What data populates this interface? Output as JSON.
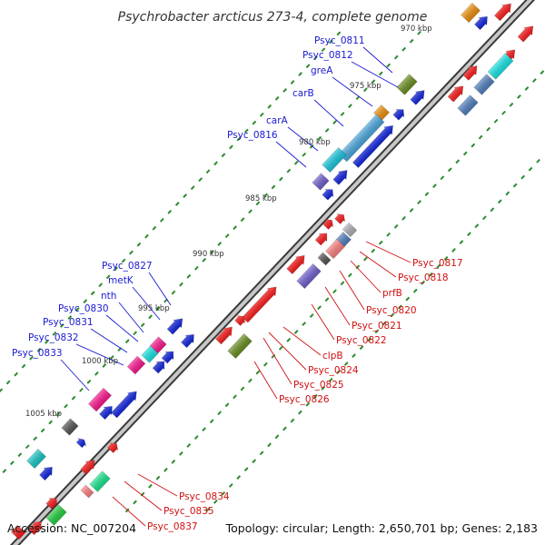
{
  "title": "Psychrobacter arcticus 273-4, complete genome",
  "footer": {
    "accession": "Accession: NC_007204",
    "summary": "Topology: circular; Length: 2,650,701 bp; Genes: 2,183"
  },
  "colors": {
    "backbone": "#8a8a8a",
    "forward_label": "#1a1ad0",
    "reverse_label": "#d01010",
    "tick": "#2a8a2a"
  },
  "kbp_labels": [
    "970 kbp",
    "975 kbp",
    "980 kbp",
    "985 kbp",
    "990 kbp",
    "995 kbp",
    "1000 kbp",
    "1005 kbp"
  ],
  "forward_labels": [
    "Psyc_0811",
    "Psyc_0812",
    "greA",
    "carB",
    "carA",
    "Psyc_0816",
    "Psyc_0827",
    "metK",
    "nth",
    "Psyc_0830",
    "Psyc_0831",
    "Psyc_0832",
    "Psyc_0833"
  ],
  "reverse_labels": [
    "Psyc_0817",
    "Psyc_0818",
    "prfB",
    "Psyc_0820",
    "Psyc_0821",
    "Psyc_0822",
    "clpB",
    "Psyc_0824",
    "Psyc_0825",
    "Psyc_0826",
    "Psyc_0834",
    "Psyc_0835",
    "Psyc_0837"
  ]
}
